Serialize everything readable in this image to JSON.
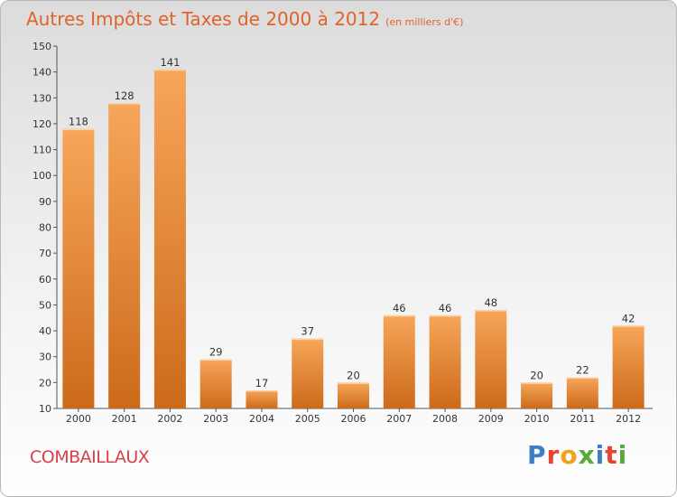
{
  "header": {
    "title": "Autres Impôts et Taxes de 2000 à 2012",
    "unit": "(en milliers d'€)"
  },
  "footer": {
    "city": "COMBAILLAUX",
    "brand": "Proxiti"
  },
  "colors": {
    "title": "#e0632a",
    "city": "#d6424a",
    "bar_top": "#f7a65a",
    "bar_bottom": "#cc6a1a",
    "brand_letters": [
      "#3b7fc4",
      "#e8432e",
      "#f2a21c",
      "#5aa83c",
      "#3b7fc4",
      "#e8432e",
      "#5aa83c"
    ]
  },
  "chart_data": {
    "type": "bar",
    "title": "Autres Impôts et Taxes de 2000 à 2012",
    "subtitle": "(en milliers d'€)",
    "categories": [
      "2000",
      "2001",
      "2002",
      "2003",
      "2004",
      "2005",
      "2006",
      "2007",
      "2008",
      "2009",
      "2010",
      "2011",
      "2012"
    ],
    "values": [
      118,
      128,
      141,
      29,
      17,
      37,
      20,
      46,
      46,
      48,
      20,
      22,
      42
    ],
    "ylim": [
      10,
      150
    ],
    "yticks": [
      10,
      20,
      30,
      40,
      50,
      60,
      70,
      80,
      90,
      100,
      110,
      120,
      130,
      140,
      150
    ],
    "grid": false,
    "xlabel": "",
    "ylabel": ""
  }
}
